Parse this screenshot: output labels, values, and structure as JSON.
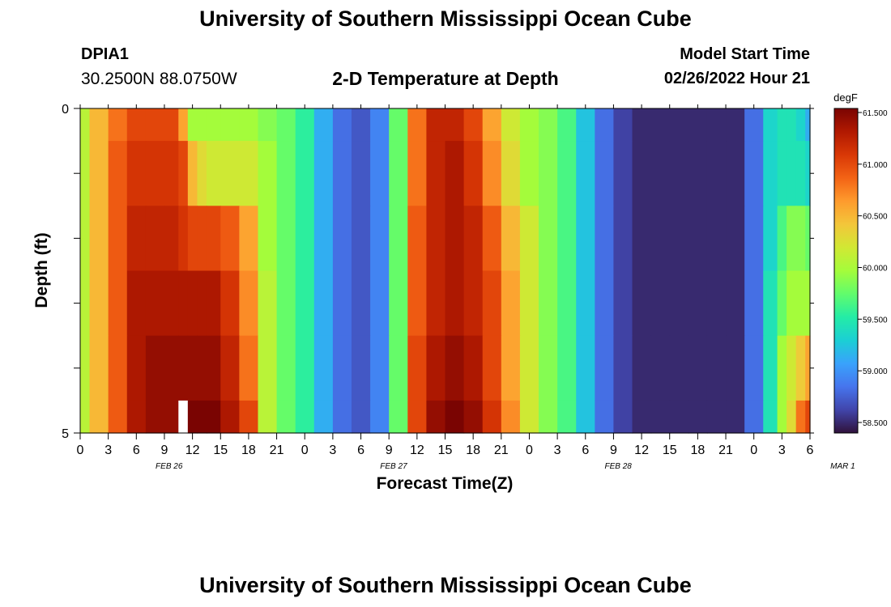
{
  "header": {
    "title": "University of Southern Mississippi Ocean Cube",
    "station_id": "DPIA1",
    "station_coords": "30.2500N  88.0750W",
    "subtitle": "2-D Temperature at Depth",
    "model_start_label": "Model Start Time",
    "model_start_value": "02/26/2022 Hour 21"
  },
  "footer": {
    "title": "University of Southern Mississippi Ocean Cube"
  },
  "chart_data": {
    "type": "heatmap",
    "xlabel": "Forecast Time(Z)",
    "ylabel": "Depth (ft)",
    "colorbar_unit": "degF",
    "colorbar_ticks": [
      "61.500",
      "61.000",
      "60.500",
      "60.000",
      "59.500",
      "59.000",
      "58.500"
    ],
    "zlim": [
      58.5,
      61.5
    ],
    "x_tick_labels": [
      "0",
      "3",
      "6",
      "9",
      "12",
      "15",
      "18",
      "21",
      "0",
      "3",
      "6",
      "9",
      "12",
      "15",
      "18",
      "21",
      "0",
      "3",
      "6",
      "9",
      "12",
      "15",
      "18",
      "21",
      "0",
      "3",
      "6"
    ],
    "day_labels": [
      "FEB 26",
      "FEB 27",
      "FEB 28",
      "MAR 1"
    ],
    "y_tick_labels": [
      "0",
      "5"
    ],
    "ylim": [
      0,
      5
    ],
    "xlim_hours": [
      0,
      78
    ],
    "depth_bands": [
      "0-0.5",
      "0.5-1.5",
      "1.5-2.5",
      "2.5-3.5",
      "3.5-4.5",
      "4.5-5"
    ],
    "column_hours": [
      0,
      2,
      4,
      6,
      8,
      10,
      11,
      12,
      13,
      14,
      16,
      18,
      20,
      22,
      24,
      26,
      28,
      30,
      32,
      34,
      36,
      38,
      40,
      42,
      44,
      46,
      48,
      50,
      52,
      54,
      56,
      58,
      60,
      62,
      64,
      66,
      68,
      70,
      72,
      74,
      75,
      76,
      77,
      78
    ],
    "surface_band": [
      60.1,
      60.5,
      60.8,
      61.0,
      61.0,
      61.0,
      60.6,
      60.0,
      60.0,
      60.0,
      60.0,
      60.0,
      59.9,
      59.8,
      59.6,
      59.2,
      58.9,
      58.8,
      59.0,
      59.8,
      60.8,
      61.2,
      61.2,
      61.0,
      60.6,
      60.2,
      60.0,
      59.9,
      59.7,
      59.3,
      58.9,
      58.7,
      58.6,
      58.6,
      58.6,
      58.6,
      58.6,
      58.6,
      58.9,
      59.4,
      59.5,
      59.5,
      59.4,
      59.2
    ],
    "upper_band": [
      60.1,
      60.5,
      60.9,
      61.1,
      61.1,
      61.1,
      61.0,
      60.5,
      60.3,
      60.2,
      60.2,
      60.2,
      60.0,
      59.8,
      59.6,
      59.2,
      58.9,
      58.8,
      59.0,
      59.8,
      60.8,
      61.2,
      61.3,
      61.1,
      60.7,
      60.3,
      60.0,
      59.9,
      59.7,
      59.3,
      58.9,
      58.7,
      58.6,
      58.6,
      58.6,
      58.6,
      58.6,
      58.6,
      58.9,
      59.4,
      59.5,
      59.5,
      59.5,
      59.4
    ],
    "middle_band": [
      60.1,
      60.5,
      60.9,
      61.2,
      61.2,
      61.2,
      61.1,
      61.0,
      61.0,
      61.0,
      60.9,
      60.6,
      60.0,
      59.8,
      59.6,
      59.2,
      58.9,
      58.8,
      59.0,
      59.8,
      60.9,
      61.2,
      61.3,
      61.2,
      60.9,
      60.5,
      60.2,
      59.9,
      59.7,
      59.3,
      58.9,
      58.7,
      58.6,
      58.6,
      58.6,
      58.6,
      58.6,
      58.6,
      58.9,
      59.4,
      59.7,
      59.9,
      59.9,
      59.8
    ],
    "lower_band": [
      60.1,
      60.5,
      60.9,
      61.3,
      61.3,
      61.3,
      61.3,
      61.3,
      61.3,
      61.3,
      61.1,
      60.7,
      60.1,
      59.8,
      59.6,
      59.2,
      58.9,
      58.8,
      59.0,
      59.8,
      60.9,
      61.2,
      61.3,
      61.2,
      61.0,
      60.6,
      60.2,
      59.9,
      59.7,
      59.3,
      58.9,
      58.7,
      58.6,
      58.6,
      58.6,
      58.6,
      58.6,
      58.6,
      58.9,
      59.5,
      59.8,
      60.0,
      60.0,
      60.0
    ],
    "deep_band": [
      60.1,
      60.5,
      60.9,
      61.3,
      61.4,
      61.4,
      61.4,
      61.4,
      61.4,
      61.4,
      61.2,
      60.8,
      60.1,
      59.8,
      59.6,
      59.2,
      58.9,
      58.8,
      59.0,
      59.8,
      61.0,
      61.3,
      61.4,
      61.3,
      61.0,
      60.6,
      60.2,
      59.9,
      59.7,
      59.3,
      58.9,
      58.7,
      58.6,
      58.6,
      58.6,
      58.6,
      58.6,
      58.6,
      58.9,
      59.5,
      60.0,
      60.2,
      60.4,
      60.6
    ],
    "bottom_band": [
      60.1,
      60.5,
      60.9,
      61.3,
      61.4,
      61.4,
      null,
      61.5,
      61.5,
      61.5,
      61.3,
      61.0,
      60.1,
      59.8,
      59.6,
      59.2,
      58.9,
      58.8,
      59.0,
      59.8,
      61.0,
      61.4,
      61.5,
      61.4,
      61.1,
      60.7,
      60.2,
      59.9,
      59.7,
      59.3,
      58.9,
      58.7,
      58.6,
      58.6,
      58.6,
      58.6,
      58.6,
      58.6,
      58.9,
      59.5,
      60.0,
      60.3,
      60.8,
      61.0
    ]
  },
  "colors": {
    "colormap": [
      "#30123b",
      "#4145ab",
      "#4675ed",
      "#39a2fc",
      "#1bcfd4",
      "#24eca6",
      "#61fc6c",
      "#a4fc3b",
      "#d1e834",
      "#f3c63a",
      "#fe9b2d",
      "#f36315",
      "#d93806",
      "#b11901",
      "#7a0402"
    ],
    "missing": "#ffffff"
  }
}
